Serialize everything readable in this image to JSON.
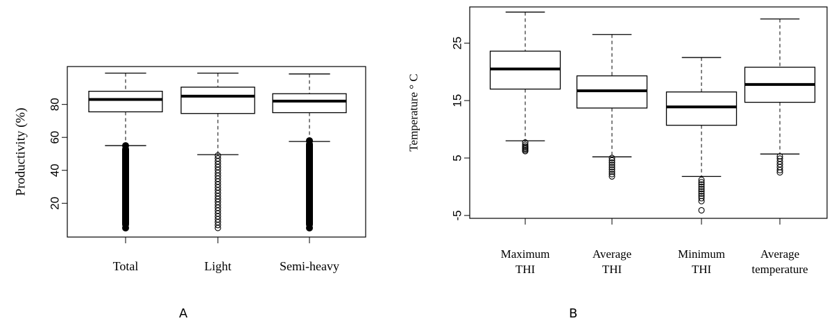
{
  "chart_data": [
    {
      "type": "box",
      "panel_label": "A",
      "ylabel": "Productivity (%)",
      "xlabel": "",
      "ylim": [
        -0.5,
        103
      ],
      "yticks": [
        20,
        40,
        60,
        80
      ],
      "categories": [
        "Total",
        "Light",
        "Semi-heavy"
      ],
      "boxes": [
        {
          "category": "Total",
          "whisker_low": 55,
          "q1": 75.5,
          "median": 83,
          "q3": 88,
          "whisker_high": 99,
          "outliers": {
            "range": [
              5,
              55
            ],
            "dense": true
          }
        },
        {
          "category": "Light",
          "whisker_low": 49.5,
          "q1": 74.5,
          "median": 85,
          "q3": 90.5,
          "whisker_high": 99,
          "outliers": {
            "range": [
              5,
              49
            ],
            "dense": false
          }
        },
        {
          "category": "Semi-heavy",
          "whisker_low": 57.5,
          "q1": 75,
          "median": 82,
          "q3": 86.5,
          "whisker_high": 98.5,
          "outliers": {
            "range": [
              5,
              58
            ],
            "dense": true
          }
        }
      ]
    },
    {
      "type": "box",
      "panel_label": "B",
      "ylabel": "Temperature  ° C",
      "xlabel": "",
      "ylim": [
        -5.5,
        31.3
      ],
      "yticks": [
        -5,
        5,
        15,
        25
      ],
      "categories": [
        [
          "Maximum",
          "THI"
        ],
        [
          "Average",
          "THI"
        ],
        [
          "Minimum",
          "THI"
        ],
        [
          "Average",
          "temperature"
        ]
      ],
      "boxes": [
        {
          "category": "Maximum THI",
          "whisker_low": 8,
          "q1": 17,
          "median": 20.5,
          "q3": 23.6,
          "whisker_high": 30.4,
          "outliers": [
            7.7,
            7.3,
            7,
            6.8,
            6.6,
            6.4,
            6.2
          ]
        },
        {
          "category": "Average THI",
          "whisker_low": 5.2,
          "q1": 13.7,
          "median": 16.7,
          "q3": 19.3,
          "whisker_high": 26.5,
          "outliers": [
            5,
            4.6,
            4.2,
            3.8,
            3.4,
            3,
            2.6,
            2.2,
            1.8
          ]
        },
        {
          "category": "Minimum THI",
          "whisker_low": 1.8,
          "q1": 10.7,
          "median": 13.9,
          "q3": 16.5,
          "whisker_high": 22.5,
          "outliers": [
            1.2,
            0.8,
            0.4,
            0,
            -0.4,
            -0.8,
            -1.2,
            -1.6,
            -2,
            -2.5,
            -4.1
          ]
        },
        {
          "category": "Average temperature",
          "whisker_low": 5.7,
          "q1": 14.7,
          "median": 17.8,
          "q3": 20.8,
          "whisker_high": 29.2,
          "outliers": [
            5.3,
            4.9,
            4.4,
            3.9,
            3.4,
            2.9,
            2.5
          ]
        }
      ]
    }
  ]
}
